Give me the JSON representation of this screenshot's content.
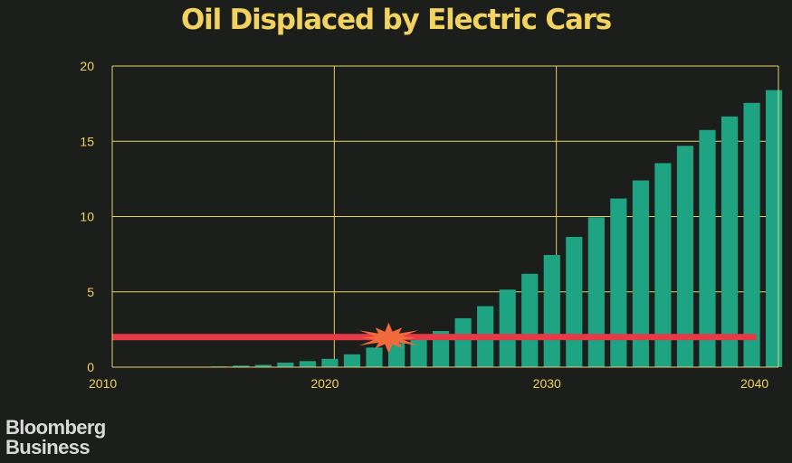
{
  "colors": {
    "background": "#1c1e1c",
    "title": "#f3d35f",
    "axis": "#e8cf6a",
    "bar": "#1ea383",
    "threshold": "#e63a46",
    "burst": "#f06a3c",
    "brand": "#d9d9d9"
  },
  "brand": {
    "line1": "Bloomberg",
    "line2": "Business"
  },
  "chart_data": {
    "type": "bar",
    "title": "Oil Displaced by Electric Cars",
    "xlabel": "",
    "ylabel": "",
    "xlim": [
      2010,
      2040
    ],
    "ylim": [
      0,
      20
    ],
    "x_ticks": [
      "2010",
      "2020",
      "2030",
      "2040"
    ],
    "y_ticks": [
      "0",
      "5",
      "10",
      "15",
      "20"
    ],
    "grid": true,
    "years": [
      2015,
      2016,
      2017,
      2018,
      2019,
      2020,
      2021,
      2022,
      2023,
      2024,
      2025,
      2026,
      2027,
      2028,
      2029,
      2030,
      2031,
      2032,
      2033,
      2034,
      2035,
      2036,
      2037,
      2038,
      2039,
      2040
    ],
    "values": [
      0.05,
      0.1,
      0.15,
      0.3,
      0.4,
      0.55,
      0.85,
      1.3,
      1.6,
      2.0,
      2.4,
      3.25,
      4.05,
      5.15,
      6.2,
      7.45,
      8.65,
      9.95,
      11.2,
      12.4,
      13.55,
      14.7,
      15.75,
      16.65,
      17.55,
      18.4
    ],
    "threshold": {
      "value": 2.0,
      "x_start": 2010,
      "x_end": 2039
    },
    "burst_year": 2023
  }
}
